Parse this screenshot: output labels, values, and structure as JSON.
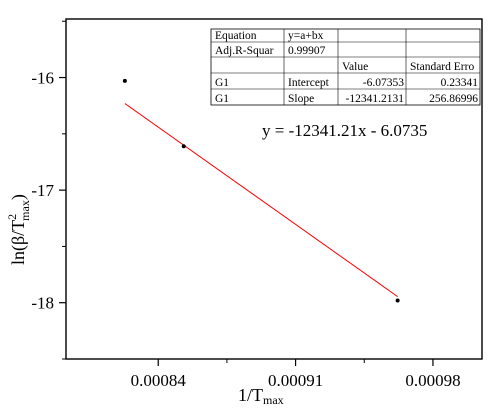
{
  "chart_data": {
    "type": "scatter",
    "xlabel_main": "1/T",
    "xlabel_sub": "max",
    "ylabel_main": "ln(β/T",
    "ylabel_sup": "2",
    "ylabel_sub": "max",
    "ylabel_close": ")",
    "xlim": [
      0.000793,
      0.001005
    ],
    "ylim": [
      -18.5,
      -15.48
    ],
    "xticks": [
      0.00084,
      0.00091,
      0.00098
    ],
    "xtick_labels": [
      "0.00084",
      "0.00091",
      "0.00098"
    ],
    "yticks": [
      -16,
      -17,
      -18
    ],
    "ytick_labels": [
      "-16",
      "-17",
      "-18"
    ],
    "grid": false,
    "points": [
      {
        "x": 0.000823,
        "y": -16.03
      },
      {
        "x": 0.000853,
        "y": -16.61
      },
      {
        "x": 0.000962,
        "y": -17.98
      }
    ],
    "fit_line": {
      "slope": -12341.2131,
      "intercept": -6.07353,
      "x_range": [
        0.000823,
        0.000962
      ],
      "color": "#ff0000"
    },
    "marker_color": "#000000",
    "equation_annotation": "y = -12341.21x - 6.0735",
    "stats_table": {
      "rows": [
        [
          "Equation",
          "y=a+bx",
          "",
          ""
        ],
        [
          "Adj.R-Squar",
          "0.99907",
          "",
          ""
        ],
        [
          "",
          "",
          "Value",
          "Standard Erro"
        ],
        [
          "G1",
          "Intercept",
          "-6.07353",
          "0.23341"
        ],
        [
          "G1",
          "Slope",
          "-12341.2131",
          "256.86996"
        ]
      ]
    }
  }
}
